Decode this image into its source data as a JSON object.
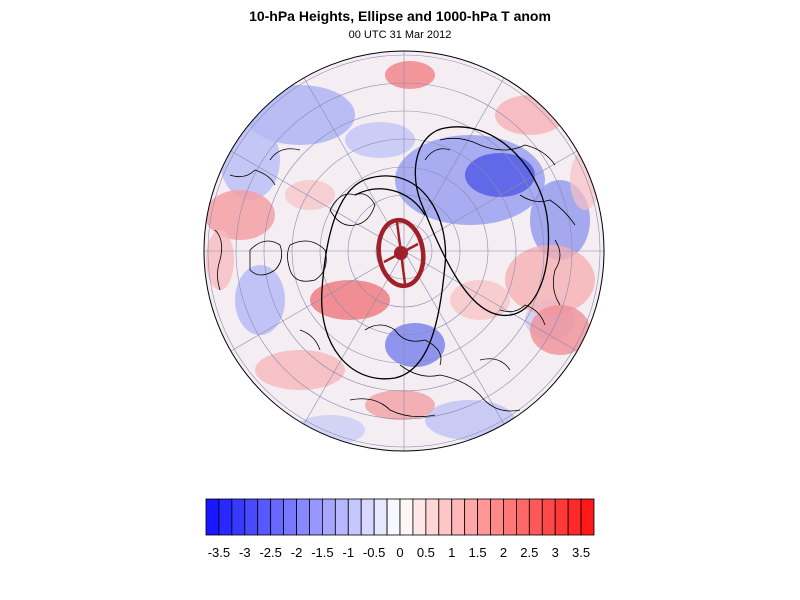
{
  "figure": {
    "title": "10-hPa Heights, Ellipse and 1000-hPa T anom",
    "subtitle": "00 UTC 31 Mar 2012"
  },
  "colors": {
    "neg_max": "#1010ff",
    "neutral": "#ffffff",
    "pos_max": "#ff1010",
    "ellipse": "#a0202a",
    "contour": "#000000",
    "grid": "#8a8ab0",
    "coast": "#000000"
  },
  "colorbar": {
    "labels": [
      "-3.5",
      "-3",
      "-2.5",
      "-2",
      "-1.5",
      "-1",
      "-0.5",
      "0",
      "0.5",
      "1",
      "1.5",
      "2",
      "2.5",
      "3",
      "3.5"
    ],
    "levels": [
      -3.75,
      -3.5,
      -3.25,
      -3,
      -2.75,
      -2.5,
      -2.25,
      -2,
      -1.75,
      -1.5,
      -1.25,
      -1,
      -0.75,
      -0.5,
      -0.25,
      0,
      0.25,
      0.5,
      0.75,
      1,
      1.25,
      1.5,
      1.75,
      2,
      2.25,
      2.5,
      2.75,
      3,
      3.25,
      3.5,
      3.75
    ]
  }
}
